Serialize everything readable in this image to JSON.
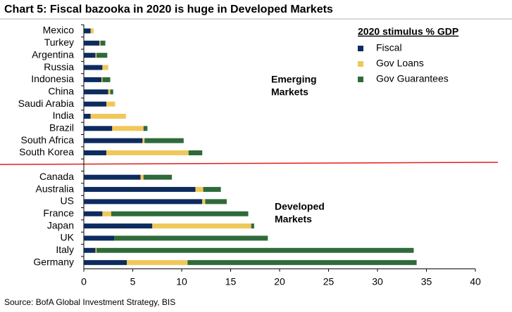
{
  "chart_data": {
    "type": "bar",
    "orientation": "horizontal",
    "stacked": true,
    "title": "Chart 5: Fiscal bazooka in 2020 is huge in Developed Markets",
    "source": "Source: BofA Global Investment Strategy, BIS",
    "legend_title": "2020 stimulus % GDP",
    "annotations": [
      {
        "lines": [
          "Emerging",
          "Markets"
        ]
      },
      {
        "lines": [
          "Developed",
          "Markets"
        ]
      }
    ],
    "categories": [
      "Mexico",
      "Turkey",
      "Argentina",
      "Russia",
      "Indonesia",
      "China",
      "Saudi Arabia",
      "India",
      "Brazil",
      "South Africa",
      "South Korea",
      null,
      "Canada",
      "Australia",
      "US",
      "France",
      "Japan",
      "UK",
      "Italy",
      "Germany"
    ],
    "series": [
      {
        "name": "Fiscal",
        "color": "#0d2b5e",
        "values": [
          0.7,
          1.6,
          1.2,
          1.9,
          1.8,
          2.5,
          2.3,
          0.7,
          2.9,
          6.0,
          2.3,
          null,
          5.8,
          11.4,
          12.1,
          1.9,
          7.0,
          3.1,
          1.2,
          4.4
        ]
      },
      {
        "name": "Gov Loans",
        "color": "#f0c75a",
        "values": [
          0.3,
          0.1,
          0.1,
          0.6,
          0.1,
          0.2,
          0.9,
          3.6,
          3.2,
          0.2,
          8.4,
          null,
          0.3,
          0.8,
          0.3,
          0.9,
          10.1,
          0,
          0.1,
          6.2
        ]
      },
      {
        "name": "Gov Guarantees",
        "color": "#2e6b3a",
        "values": [
          0,
          0.5,
          1.1,
          0,
          0.8,
          0.3,
          0,
          0,
          0.4,
          4.0,
          1.4,
          null,
          2.9,
          1.8,
          2.2,
          14.0,
          0.3,
          15.7,
          32.4,
          23.4
        ]
      }
    ],
    "xlim": [
      0,
      40
    ],
    "xticks": [
      0,
      5,
      10,
      15,
      20,
      25,
      30,
      35,
      40
    ]
  }
}
